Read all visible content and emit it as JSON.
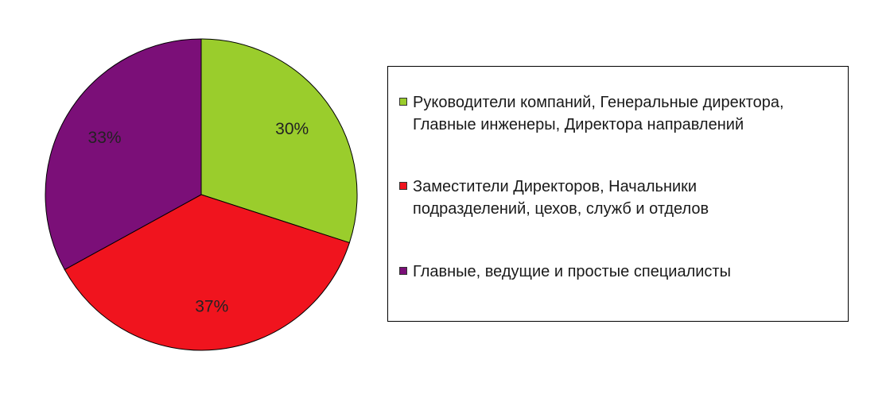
{
  "chart_data": {
    "type": "pie",
    "title": "",
    "series": [
      {
        "values": [
          30,
          37,
          33
        ],
        "labels": [
          "30%",
          "37%",
          "33%"
        ],
        "colors": [
          "#9acd2c",
          "#f0141e",
          "#7b0f78"
        ]
      }
    ],
    "categories": [
      "Руководители  компаний, Генеральные директора, Главные инженеры, Директора направлений",
      "Заместители Директоров, Начальники подразделений, цехов,  служб  и  отделов",
      "Главные, ведущие  и простые  специалисты"
    ],
    "start_angle": "12 o'clock",
    "direction": "clockwise",
    "legend_position": "right",
    "slice_border_color": "#000000"
  },
  "legend": {
    "items": [
      {
        "line1": "Руководители  компаний, Генеральные директора,",
        "line2": "Главные инженеры, Директора направлений",
        "color": "#9acd2c"
      },
      {
        "line1": "Заместители Директоров, Начальники",
        "line2": "подразделений, цехов,  служб  и  отделов",
        "color": "#f0141e"
      },
      {
        "line1": "Главные, ведущие  и простые  специалисты",
        "line2": "",
        "color": "#7b0f78"
      }
    ]
  }
}
